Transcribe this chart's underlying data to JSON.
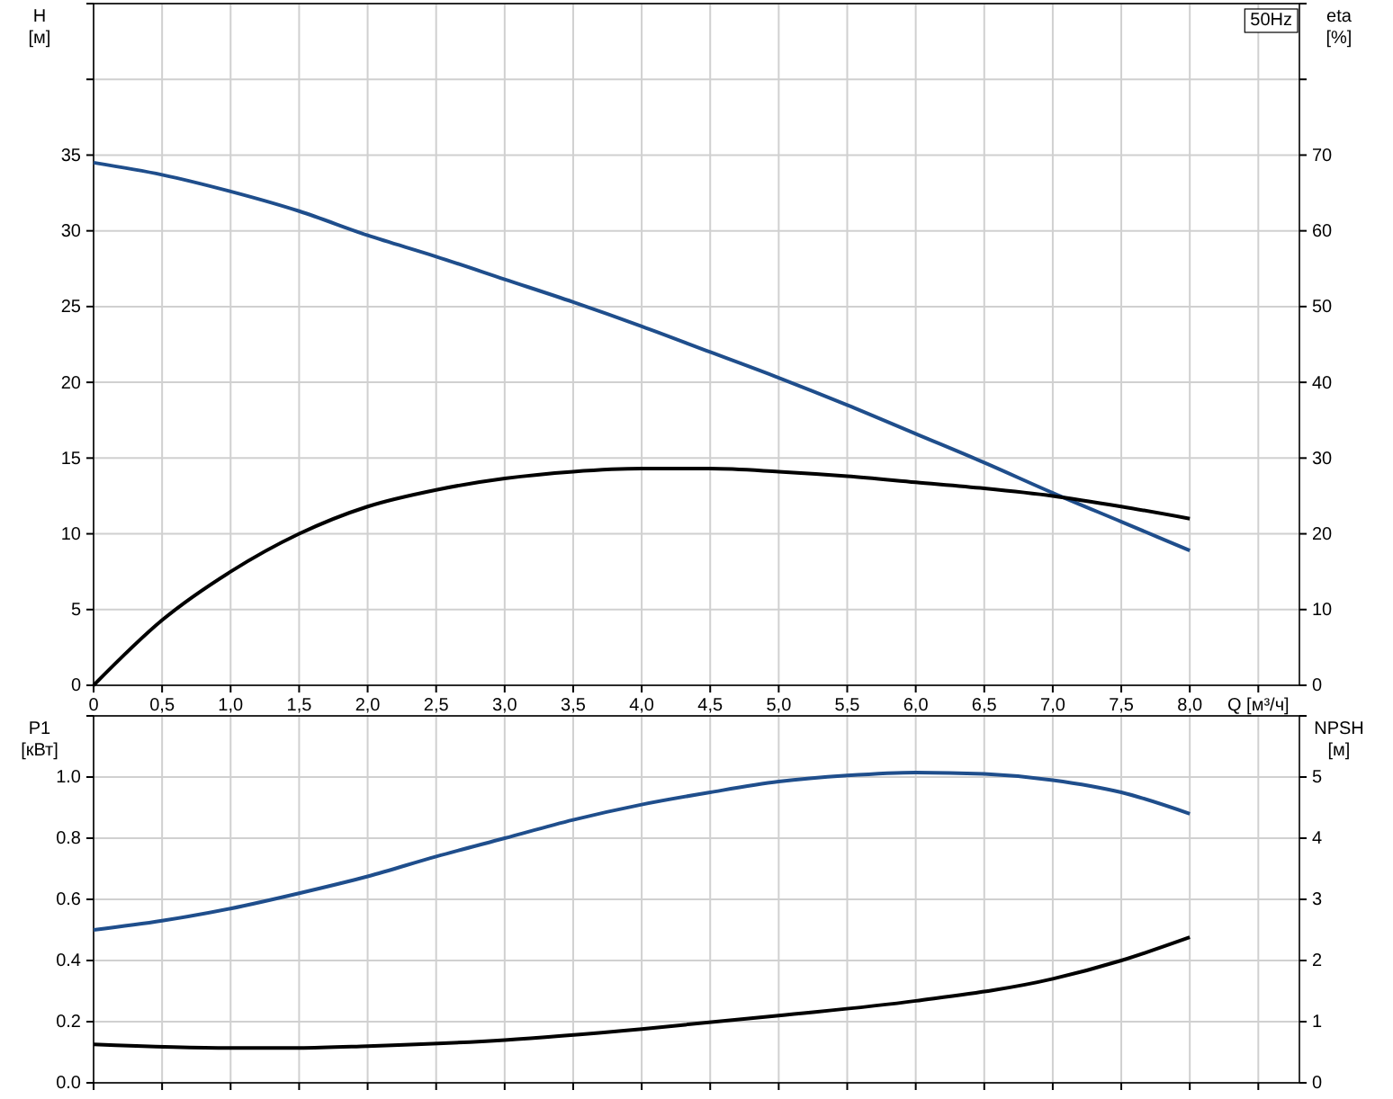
{
  "chart_data": [
    {
      "type": "line",
      "xlabel": "Q [м³/ч]",
      "ylabel": "H [м]",
      "y2label": "eta [%]",
      "annotations": [
        "50Hz"
      ],
      "grid": true,
      "xlim": [
        0,
        8.8
      ],
      "xticks": [
        0,
        {
          "value": 0.5,
          "label": "0,5"
        },
        {
          "value": 1,
          "label": "1,0"
        },
        {
          "value": 1.5,
          "label": "1,5"
        },
        {
          "value": 2,
          "label": "2,0"
        },
        {
          "value": 2.5,
          "label": "2,5"
        },
        {
          "value": 3,
          "label": "3,0"
        },
        {
          "value": 3.5,
          "label": "3,5"
        },
        {
          "value": 4,
          "label": "4,0"
        },
        {
          "value": 4.5,
          "label": "4,5"
        },
        {
          "value": 5,
          "label": "5,0"
        },
        {
          "value": 5.5,
          "label": "5,5"
        },
        {
          "value": 6,
          "label": "6,0"
        },
        {
          "value": 6.5,
          "label": "6,5"
        },
        {
          "value": 7,
          "label": "7,0"
        },
        {
          "value": 7.5,
          "label": "7,5"
        },
        {
          "value": 8,
          "label": "8,0"
        },
        {
          "value": 8.5,
          "label": null
        }
      ],
      "ylim": [
        0,
        45
      ],
      "yticks": [
        0,
        5,
        10,
        15,
        20,
        25,
        30,
        35,
        {
          "value": 40,
          "label": null
        },
        {
          "value": 45,
          "label": null
        }
      ],
      "y2lim": [
        0,
        90
      ],
      "y2ticks": [
        0,
        10,
        20,
        30,
        40,
        50,
        60,
        70,
        {
          "value": 80,
          "label": null
        },
        {
          "value": 90,
          "label": null
        }
      ],
      "series": [
        {
          "color": "#1f4e8c",
          "x": [
            0,
            0.5,
            1,
            1.5,
            2,
            2.5,
            3,
            3.5,
            4,
            4.5,
            5,
            5.5,
            6,
            6.5,
            7,
            7.5,
            8
          ],
          "values": [
            34.5,
            33.7,
            32.6,
            31.3,
            29.7,
            28.3,
            26.8,
            25.3,
            23.7,
            22.0,
            20.3,
            18.5,
            16.6,
            14.7,
            12.7,
            10.8,
            8.9
          ]
        },
        {
          "color": "#000000",
          "axis": "y2",
          "x": [
            0,
            0.5,
            1,
            1.5,
            2,
            2.5,
            3,
            3.5,
            4,
            4.5,
            5,
            5.5,
            6,
            6.5,
            7,
            7.5,
            8
          ],
          "values": [
            0,
            8.6,
            15,
            20,
            23.6,
            25.8,
            27.3,
            28.2,
            28.6,
            28.6,
            28.2,
            27.6,
            26.8,
            26,
            25,
            23.6,
            22
          ]
        }
      ]
    },
    {
      "type": "line",
      "ylabel": "P1 [кВт]",
      "y2label": "NPSH [м]",
      "grid": true,
      "tick_labels": "y",
      "xlim": [
        0,
        8.8
      ],
      "xticks": [
        0,
        0.5,
        1,
        1.5,
        2,
        2.5,
        3,
        3.5,
        4,
        4.5,
        5,
        5.5,
        6,
        6.5,
        7,
        7.5,
        8,
        8.5
      ],
      "ylim": [
        0,
        1.2
      ],
      "yticks": [
        {
          "value": 0,
          "label": "0.0"
        },
        0.2,
        0.4,
        0.6,
        0.8,
        {
          "value": 1,
          "label": "1.0"
        },
        {
          "value": 1.2,
          "label": null
        }
      ],
      "y2lim": [
        0,
        6
      ],
      "y2ticks": [
        0,
        1,
        2,
        3,
        4,
        5,
        {
          "value": 6,
          "label": null
        }
      ],
      "series": [
        {
          "color": "#1f4e8c",
          "x": [
            0,
            0.5,
            1,
            1.5,
            2,
            2.5,
            3,
            3.5,
            4,
            4.5,
            5,
            5.5,
            6,
            6.5,
            7,
            7.5,
            8
          ],
          "values": [
            0.5,
            0.53,
            0.57,
            0.62,
            0.675,
            0.74,
            0.8,
            0.86,
            0.91,
            0.95,
            0.985,
            1.005,
            1.015,
            1.01,
            0.99,
            0.95,
            0.88
          ]
        },
        {
          "color": "#000000",
          "axis": "y2",
          "x": [
            0,
            1,
            1.5,
            2,
            3,
            4,
            5,
            6,
            7,
            7.5,
            8
          ],
          "values": [
            0.63,
            0.57,
            0.57,
            0.6,
            0.7,
            0.88,
            1.1,
            1.34,
            1.7,
            2.0,
            2.38
          ]
        }
      ]
    }
  ]
}
